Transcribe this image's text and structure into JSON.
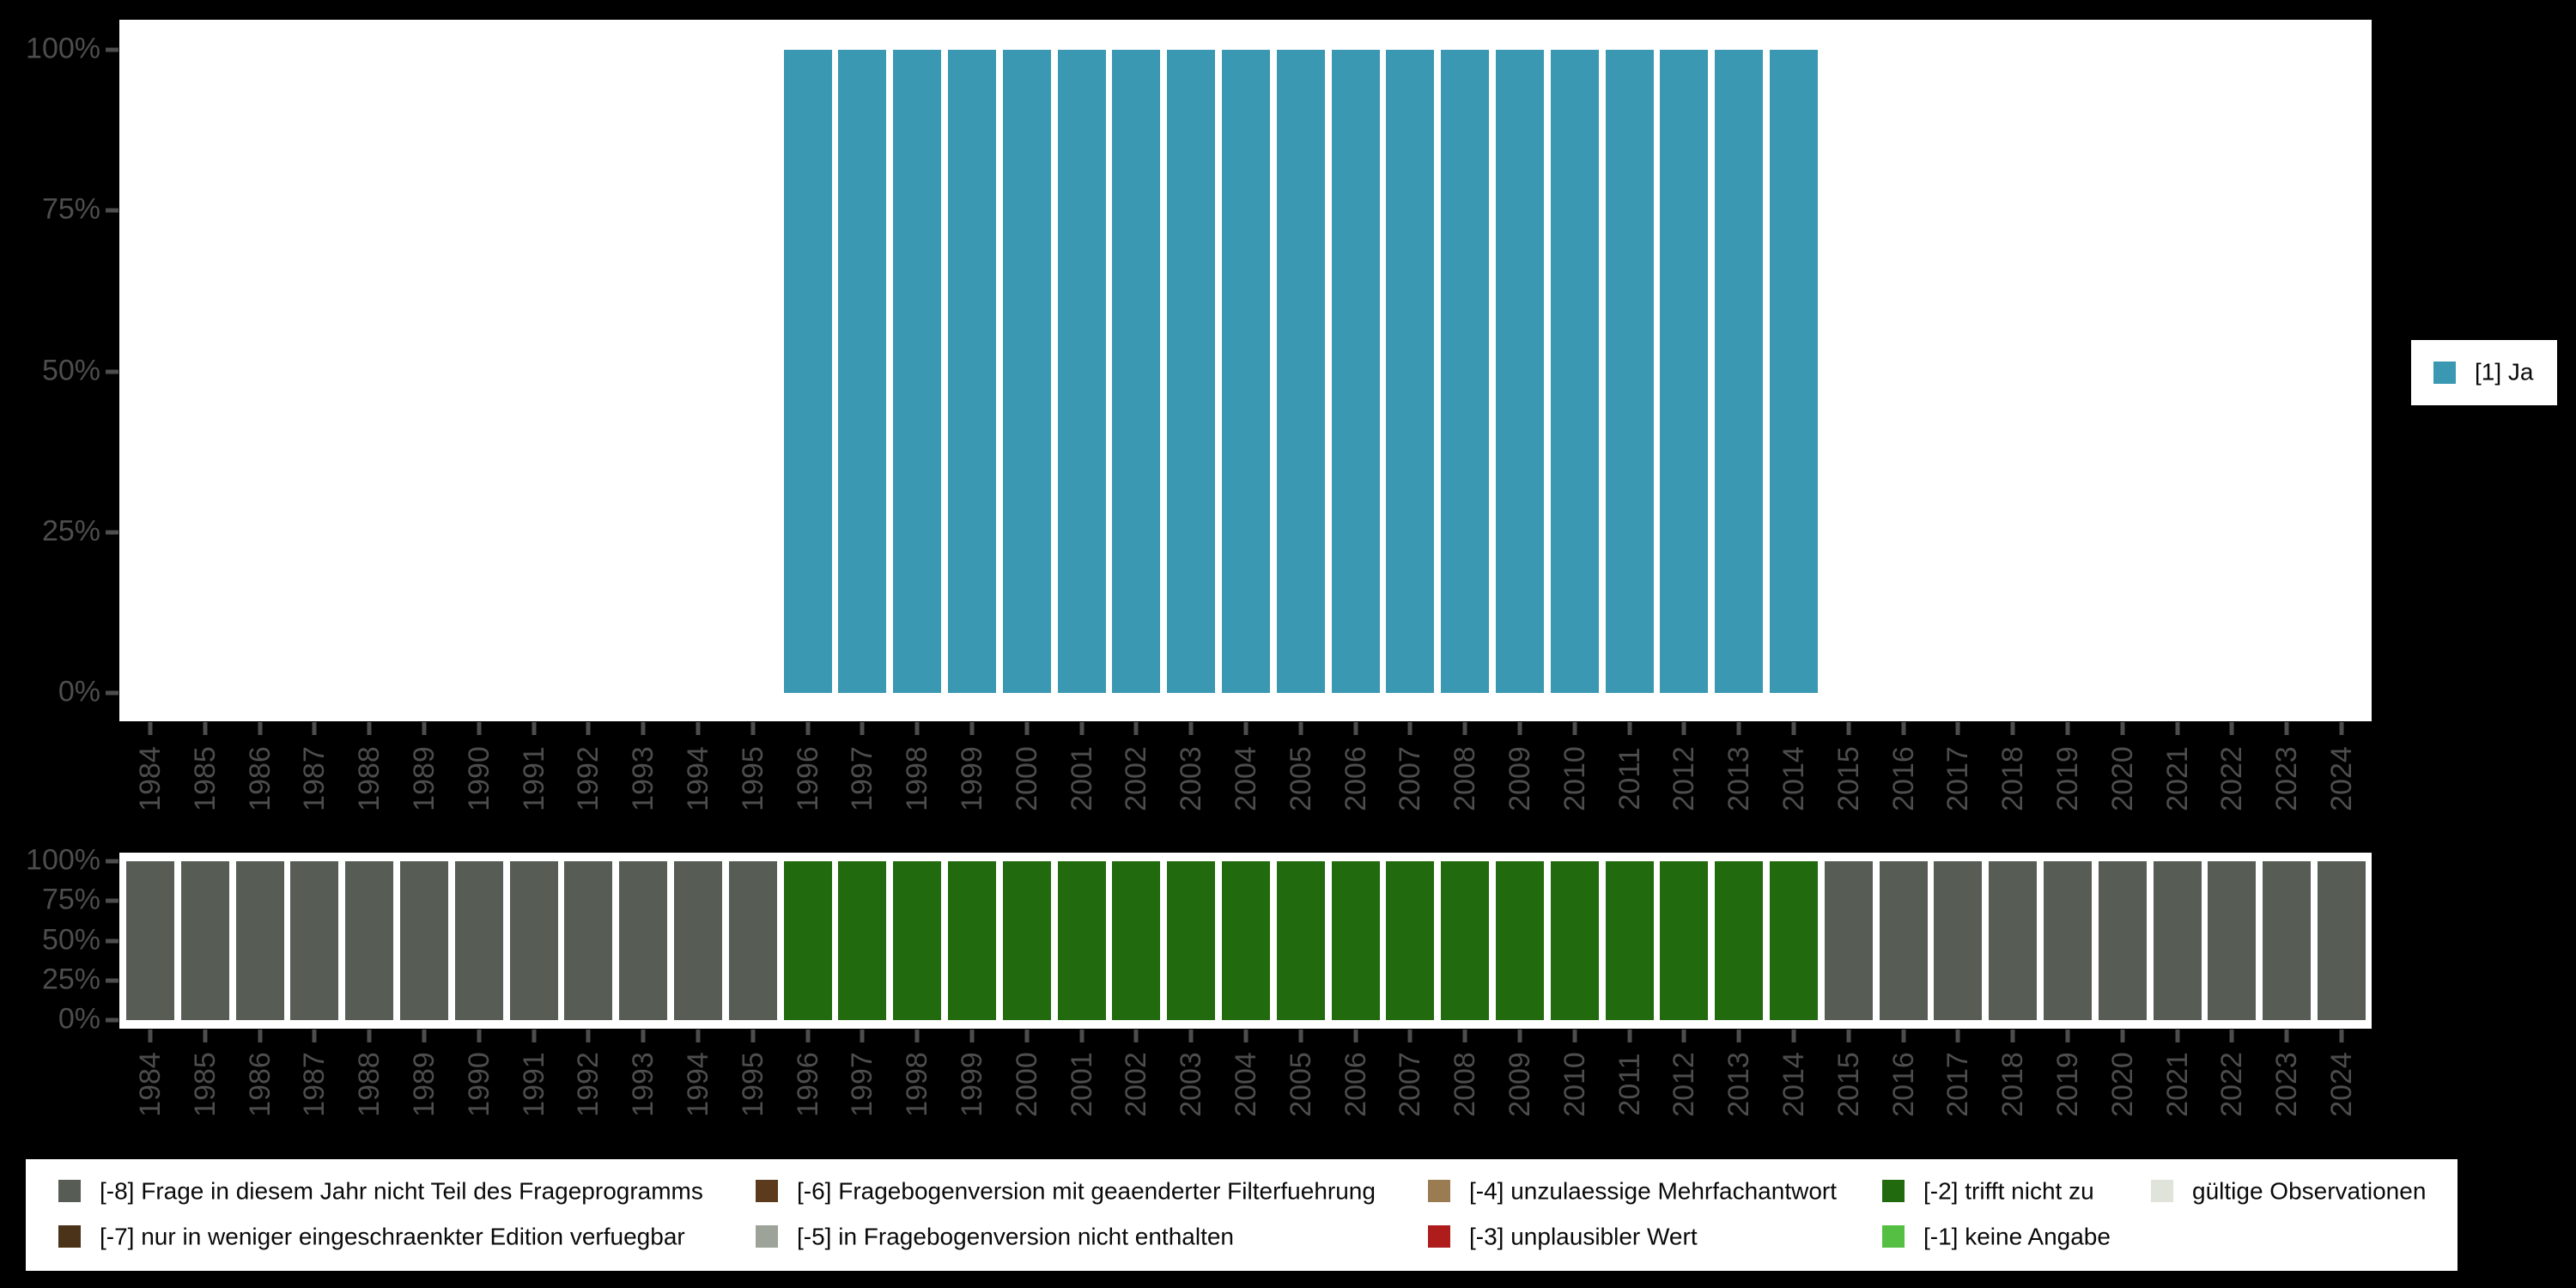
{
  "figure": {
    "background": "#000000",
    "plot_background": "#ffffff",
    "axis_text_color": "#4d4d4d"
  },
  "chart_data": [
    {
      "type": "bar",
      "title": "",
      "x": [
        1984,
        1985,
        1986,
        1987,
        1988,
        1989,
        1990,
        1991,
        1992,
        1993,
        1994,
        1995,
        1996,
        1997,
        1998,
        1999,
        2000,
        2001,
        2002,
        2003,
        2004,
        2005,
        2006,
        2007,
        2008,
        2009,
        2010,
        2011,
        2012,
        2013,
        2014,
        2015,
        2016,
        2017,
        2018,
        2019,
        2020,
        2021,
        2022,
        2023,
        2024
      ],
      "ylim": [
        0,
        100
      ],
      "ytick_labels": [
        "0%",
        "25%",
        "50%",
        "75%",
        "100%"
      ],
      "grid": false,
      "legend_position": "right",
      "legend": [
        {
          "label": "[1] Ja",
          "color": "#3b98b2"
        }
      ],
      "series": [
        {
          "name": "[1] Ja",
          "color": "#3b98b2",
          "values": [
            0,
            0,
            0,
            0,
            0,
            0,
            0,
            0,
            0,
            0,
            0,
            0,
            100,
            100,
            100,
            100,
            100,
            100,
            100,
            100,
            100,
            100,
            100,
            100,
            100,
            100,
            100,
            100,
            100,
            100,
            100,
            0,
            0,
            0,
            0,
            0,
            0,
            0,
            0,
            0,
            0
          ]
        }
      ]
    },
    {
      "type": "bar",
      "title": "",
      "x": [
        1984,
        1985,
        1986,
        1987,
        1988,
        1989,
        1990,
        1991,
        1992,
        1993,
        1994,
        1995,
        1996,
        1997,
        1998,
        1999,
        2000,
        2001,
        2002,
        2003,
        2004,
        2005,
        2006,
        2007,
        2008,
        2009,
        2010,
        2011,
        2012,
        2013,
        2014,
        2015,
        2016,
        2017,
        2018,
        2019,
        2020,
        2021,
        2022,
        2023,
        2024
      ],
      "ylim": [
        0,
        100
      ],
      "ytick_labels": [
        "0%",
        "25%",
        "50%",
        "75%",
        "100%"
      ],
      "grid": false,
      "series": [
        {
          "name": "[-8] Frage in diesem Jahr nicht Teil des Frageprogramms",
          "color": "#575c55",
          "values": [
            100,
            100,
            100,
            100,
            100,
            100,
            100,
            100,
            100,
            100,
            100,
            100,
            0,
            0,
            0,
            0,
            0,
            0,
            0,
            0,
            0,
            0,
            0,
            0,
            0,
            0,
            0,
            0,
            0,
            0,
            0,
            100,
            100,
            100,
            100,
            100,
            100,
            100,
            100,
            100,
            100
          ]
        },
        {
          "name": "[-2] trifft nicht zu",
          "color": "#226a0e",
          "values": [
            0,
            0,
            0,
            0,
            0,
            0,
            0,
            0,
            0,
            0,
            0,
            0,
            100,
            100,
            100,
            100,
            100,
            100,
            100,
            100,
            100,
            100,
            100,
            100,
            100,
            100,
            100,
            100,
            100,
            100,
            100,
            0,
            0,
            0,
            0,
            0,
            0,
            0,
            0,
            0,
            0
          ]
        }
      ]
    }
  ],
  "legend_missing": {
    "items": [
      {
        "label": "[-8] Frage in diesem Jahr nicht Teil des Frageprogramms",
        "color": "#575c55",
        "row": 1,
        "col": 1
      },
      {
        "label": "[-7] nur in weniger eingeschraenkter Edition verfuegbar",
        "color": "#4a3319",
        "row": 2,
        "col": 1
      },
      {
        "label": "[-6] Fragebogenversion mit geaenderter Filterfuehrung",
        "color": "#5c3a1d",
        "row": 1,
        "col": 2
      },
      {
        "label": "[-5] in Fragebogenversion nicht enthalten",
        "color": "#9ea399",
        "row": 2,
        "col": 2
      },
      {
        "label": "[-4] unzulaessige Mehrfachantwort",
        "color": "#9a7b52",
        "row": 1,
        "col": 3
      },
      {
        "label": "[-3] unplausibler Wert",
        "color": "#ae1c1c",
        "row": 2,
        "col": 3
      },
      {
        "label": "[-2] trifft nicht zu",
        "color": "#226a0e",
        "row": 1,
        "col": 4
      },
      {
        "label": "[-1] keine Angabe",
        "color": "#55bf44",
        "row": 2,
        "col": 4
      },
      {
        "label": "gültige Observationen",
        "color": "#dfe3da",
        "row": 1,
        "col": 5
      }
    ]
  }
}
